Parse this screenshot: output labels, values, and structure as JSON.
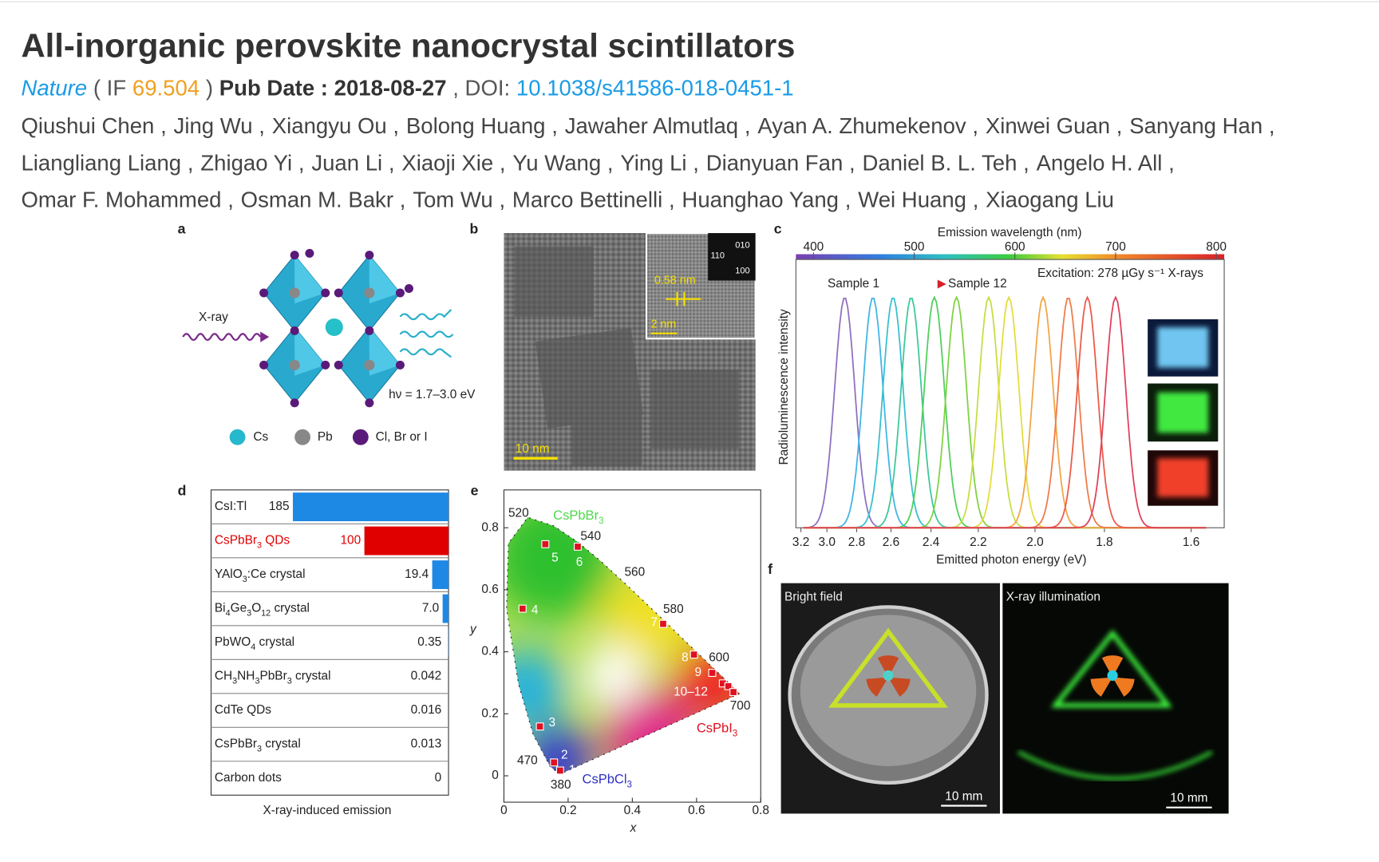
{
  "header": {
    "title": "All-inorganic perovskite nanocrystal scintillators",
    "meta": [
      {
        "text": "Nature",
        "style": "journal"
      },
      {
        "text": "( IF",
        "style": "plain"
      },
      {
        "text": "69.504",
        "style": "if"
      },
      {
        "text": ")",
        "style": "plain"
      },
      {
        "text": "Pub Date : 2018-08-27",
        "style": "bold"
      },
      {
        "text": ", DOI:",
        "style": "plain"
      },
      {
        "text": "10.1038/s41586-018-0451-1",
        "style": "link"
      }
    ],
    "authors": [
      "Qiushui Chen",
      "Jing Wu",
      "Xiangyu Ou",
      "Bolong Huang",
      "Jawaher Almutlaq",
      "Ayan A. Zhumekenov",
      "Xinwei Guan",
      "Sanyang Han",
      "Liangliang Liang",
      "Zhigao Yi",
      "Juan Li",
      "Xiaoji Xie",
      "Yu Wang",
      "Ying Li",
      "Dianyuan Fan",
      "Daniel B. L. Teh",
      "Angelo H. All",
      "Omar F. Mohammed",
      "Osman M. Bakr",
      "Tom Wu",
      "Marco Bettinelli",
      "Huanghao Yang",
      "Wei Huang",
      "Xiaogang Liu"
    ],
    "author_separator": ","
  },
  "figure": {
    "a": {
      "label": "a",
      "xray": "X-ray",
      "energy": "hν = 1.7–3.0 eV",
      "legend": [
        "Cs",
        "Pb",
        "Cl, Br or I"
      ]
    },
    "b": {
      "label": "b",
      "inset_scale": "0.58 nm",
      "inset_bar": "2 nm",
      "scale_bar": "10 nm",
      "fft": [
        "010",
        "110",
        "100"
      ]
    },
    "c": {
      "label": "c",
      "top_axis_title": "Emission wavelength (nm)",
      "top_ticks": [
        400,
        500,
        600,
        700,
        800
      ],
      "bottom_ticks": [
        3.2,
        {
          "value": 3,
          "label": "3.0"
        },
        2.8,
        2.6,
        2.4,
        2.2,
        {
          "value": 2,
          "label": "2.0"
        },
        1.8,
        1.6
      ],
      "y_title": "Radioluminescence intensity",
      "x_title": "Emitted photon energy (eV)",
      "excitation": "Excitation: 278 µGy s⁻¹ X-rays",
      "sample_start": "Sample 1",
      "sample_end": "Sample 12",
      "peaks_nm": [
        431,
        459,
        479,
        497,
        520,
        542,
        574,
        594,
        628,
        653,
        672,
        700
      ],
      "colors": [
        "#8e6fc0",
        "#3fb4e6",
        "#35c0d0",
        "#3cc79a",
        "#4fcf5a",
        "#7fd240",
        "#c6dd42",
        "#e4dc3c",
        "#f2a444",
        "#ef7a48",
        "#ea5a48",
        "#e0405a"
      ]
    },
    "d": {
      "label": "d",
      "caption": "X-ray-induced emission",
      "rows": [
        {
          "name": "CsI:Tl",
          "value": 185,
          "color": "#1e88e5"
        },
        {
          "name": "CsPbBr3 QDs",
          "value": 100,
          "color": "#e00000"
        },
        {
          "name": "YAlO3:Ce crystal",
          "value": 19.4,
          "color": "#1e88e5"
        },
        {
          "name": "Bi4Ge3O12 crystal",
          "value": 7,
          "value_label": "7.0",
          "color": "#1e88e5"
        },
        {
          "name": "PbWO4 crystal",
          "value": 0.35,
          "color": "#1e88e5"
        },
        {
          "name": "CH3NH3PbBr3 crystal",
          "value": 0.042,
          "color": "#1e88e5"
        },
        {
          "name": "CdTe QDs",
          "value": 0.016,
          "color": "#1e88e5"
        },
        {
          "name": "CsPbBr3 crystal",
          "value": 0.013,
          "color": "#1e88e5"
        },
        {
          "name": "Carbon dots",
          "value": 0,
          "color": "#1e88e5"
        }
      ]
    },
    "e": {
      "label": "e",
      "x_title": "x",
      "y_title": "y",
      "xticks": [
        0,
        0.2,
        0.4,
        0.6,
        0.8
      ],
      "yticks": [
        0,
        0.2,
        0.4,
        0.6,
        0.8
      ],
      "points": [
        {
          "label": "1",
          "xy": [
            [
              0.175,
              0.017
            ]
          ]
        },
        {
          "label": "2",
          "xy": [
            [
              0.156,
              0.043
            ]
          ]
        },
        {
          "label": "3",
          "xy": [
            [
              0.112,
              0.159
            ]
          ]
        },
        {
          "label": "4",
          "xy": [
            [
              0.058,
              0.539
            ]
          ]
        },
        {
          "label": "5",
          "xy": [
            [
              0.129,
              0.747
            ]
          ]
        },
        {
          "label": "6",
          "xy": [
            [
              0.23,
              0.739
            ]
          ]
        },
        {
          "label": "7",
          "xy": [
            [
              0.496,
              0.49
            ]
          ]
        },
        {
          "label": "8",
          "xy": [
            [
              0.592,
              0.391
            ]
          ]
        },
        {
          "label": "9",
          "xy": [
            [
              0.649,
              0.332
            ]
          ]
        },
        {
          "label": "10–12",
          "xy": [
            [
              0.682,
              0.298
            ],
            [
              0.699,
              0.289
            ],
            [
              0.715,
              0.27
            ]
          ]
        }
      ],
      "wavelengths": [
        "520",
        "540",
        "560",
        "580",
        "600",
        "700",
        "470",
        "380"
      ],
      "compounds": [
        "CsPbBr3",
        "CsPbI3",
        "CsPbCl3"
      ]
    },
    "f": {
      "label": "f",
      "panels": [
        "Bright field",
        "X-ray illumination"
      ],
      "scale_bars": [
        "10 mm",
        "10 mm"
      ]
    }
  }
}
